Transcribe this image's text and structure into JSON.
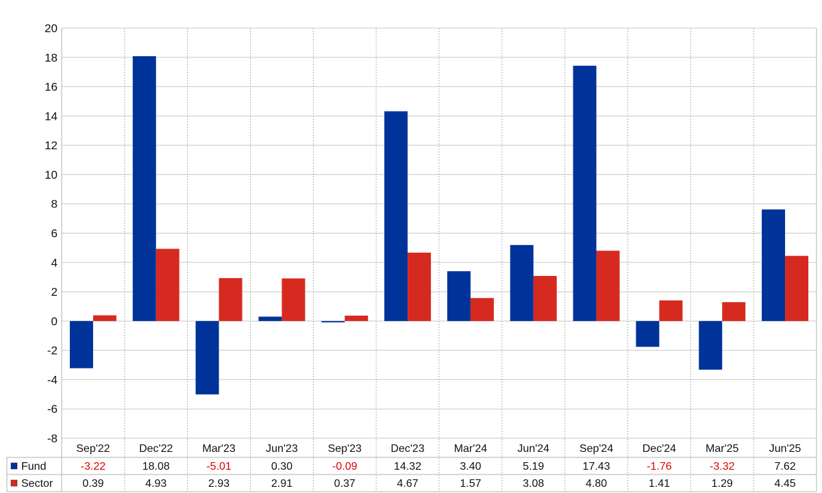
{
  "chart_data": {
    "type": "bar",
    "categories": [
      "Sep'22",
      "Dec'22",
      "Mar'23",
      "Jun'23",
      "Sep'23",
      "Dec'23",
      "Mar'24",
      "Jun'24",
      "Sep'24",
      "Dec'24",
      "Mar'25",
      "Jun'25"
    ],
    "series": [
      {
        "name": "Fund",
        "color": "#003399",
        "values": [
          -3.22,
          18.08,
          -5.01,
          0.3,
          -0.09,
          14.32,
          3.4,
          5.19,
          17.43,
          -1.76,
          -3.32,
          7.62
        ],
        "labels": [
          "-3.22",
          "18.08",
          "-5.01",
          "0.30",
          "-0.09",
          "14.32",
          "3.40",
          "5.19",
          "17.43",
          "-1.76",
          "-3.32",
          "7.62"
        ]
      },
      {
        "name": "Sector",
        "color": "#d62a20",
        "values": [
          0.39,
          4.93,
          2.93,
          2.91,
          0.37,
          4.67,
          1.57,
          3.08,
          4.8,
          1.41,
          1.29,
          4.45
        ],
        "labels": [
          "0.39",
          "4.93",
          "2.93",
          "2.91",
          "0.37",
          "4.67",
          "1.57",
          "3.08",
          "4.80",
          "1.41",
          "1.29",
          "4.45"
        ]
      }
    ],
    "yticks": [
      "20",
      "18",
      "16",
      "14",
      "12",
      "10",
      "8",
      "6",
      "4",
      "2",
      "0",
      "-2",
      "-4",
      "-6",
      "-8"
    ],
    "ylim": [
      -8,
      20
    ],
    "ystep": 2,
    "grid": true,
    "legend": "table-below",
    "negative_label_color": "#e00000",
    "title": "",
    "xlabel": "",
    "ylabel": ""
  }
}
